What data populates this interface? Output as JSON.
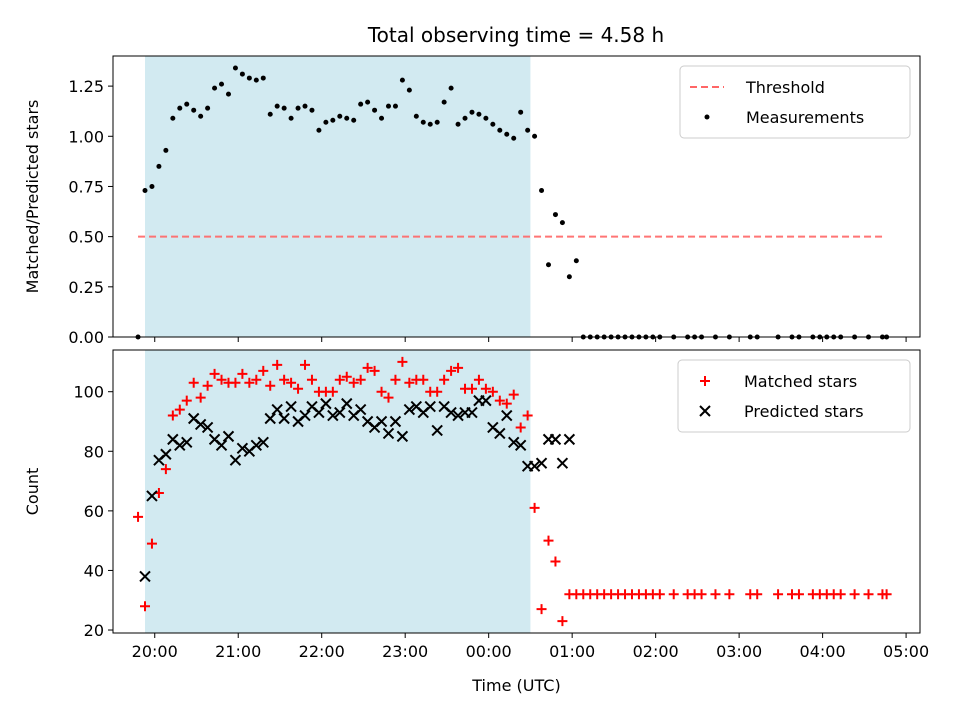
{
  "title": "Total observing time = 4.58 h",
  "chart_data": [
    {
      "type": "scatter",
      "ylabel": "Matched/Predicted stars",
      "xlabel": "",
      "xlim": [
        "19:30",
        "05:10"
      ],
      "ylim": [
        0,
        1.4
      ],
      "xticks": [
        "20:00",
        "21:00",
        "22:00",
        "23:00",
        "00:00",
        "01:00",
        "02:00",
        "03:00",
        "04:00",
        "05:00"
      ],
      "yticks": [
        "0.00",
        "0.25",
        "0.50",
        "0.75",
        "1.00",
        "1.25"
      ],
      "shaded_region": [
        "19:53",
        "00:30"
      ],
      "shaded_color": "#add8e6",
      "legend_position": "upper right",
      "threshold": {
        "name": "Threshold",
        "value": 0.5,
        "x_start": "19:48",
        "x_end": "04:45",
        "color": "#ff6666"
      },
      "series": [
        {
          "name": "Measurements",
          "color": "#000000",
          "x": [
            "19:48",
            "19:53",
            "19:58",
            "20:03",
            "20:08",
            "20:13",
            "20:18",
            "20:23",
            "20:28",
            "20:33",
            "20:38",
            "20:43",
            "20:48",
            "20:53",
            "20:58",
            "21:03",
            "21:08",
            "21:13",
            "21:18",
            "21:23",
            "21:28",
            "21:33",
            "21:38",
            "21:43",
            "21:48",
            "21:53",
            "21:58",
            "22:03",
            "22:08",
            "22:13",
            "22:18",
            "22:23",
            "22:28",
            "22:33",
            "22:38",
            "22:43",
            "22:48",
            "22:53",
            "22:58",
            "23:03",
            "23:08",
            "23:13",
            "23:18",
            "23:23",
            "23:28",
            "23:33",
            "23:38",
            "23:43",
            "23:48",
            "23:53",
            "23:58",
            "00:03",
            "00:08",
            "00:13",
            "00:18",
            "00:23",
            "00:28",
            "00:33",
            "00:38",
            "00:43",
            "00:48",
            "00:53",
            "00:58",
            "01:03",
            "01:08",
            "01:13",
            "01:18",
            "01:23",
            "01:28",
            "01:33",
            "01:38",
            "01:43",
            "01:48",
            "01:53",
            "01:58",
            "02:03",
            "02:13",
            "02:23",
            "02:28",
            "02:33",
            "02:43",
            "02:53",
            "03:08",
            "03:13",
            "03:28",
            "03:38",
            "03:43",
            "03:53",
            "03:58",
            "04:03",
            "04:08",
            "04:13",
            "04:23",
            "04:33",
            "04:43",
            "04:46"
          ],
          "y": [
            0.0,
            0.73,
            0.75,
            0.85,
            0.93,
            1.09,
            1.14,
            1.16,
            1.13,
            1.1,
            1.14,
            1.24,
            1.26,
            1.21,
            1.34,
            1.31,
            1.29,
            1.28,
            1.29,
            1.11,
            1.15,
            1.14,
            1.09,
            1.14,
            1.15,
            1.13,
            1.03,
            1.07,
            1.08,
            1.1,
            1.09,
            1.08,
            1.16,
            1.17,
            1.13,
            1.09,
            1.15,
            1.15,
            1.28,
            1.23,
            1.1,
            1.07,
            1.06,
            1.07,
            1.17,
            1.24,
            1.06,
            1.09,
            1.12,
            1.11,
            1.09,
            1.06,
            1.03,
            1.01,
            0.99,
            1.12,
            1.03,
            1.0,
            0.73,
            0.36,
            0.61,
            0.57,
            0.3,
            0.38,
            0,
            0,
            0,
            0,
            0,
            0,
            0,
            0,
            0,
            0,
            0,
            0,
            0,
            0,
            0,
            0,
            0,
            0,
            0,
            0,
            0,
            0,
            0,
            0,
            0,
            0,
            0,
            0,
            0,
            0,
            0,
            0
          ]
        }
      ]
    },
    {
      "type": "scatter",
      "ylabel": "Count",
      "xlabel": "Time (UTC)",
      "xlim": [
        "19:30",
        "05:10"
      ],
      "ylim": [
        19,
        114
      ],
      "xticks": [
        "20:00",
        "21:00",
        "22:00",
        "23:00",
        "00:00",
        "01:00",
        "02:00",
        "03:00",
        "04:00",
        "05:00"
      ],
      "yticks": [
        "20",
        "40",
        "60",
        "80",
        "100"
      ],
      "shaded_region": [
        "19:53",
        "00:30"
      ],
      "shaded_color": "#add8e6",
      "legend_position": "upper right",
      "series": [
        {
          "name": "Matched stars",
          "marker": "+",
          "color": "#ff0000",
          "x": [
            "19:48",
            "19:53",
            "19:58",
            "20:03",
            "20:08",
            "20:13",
            "20:18",
            "20:23",
            "20:28",
            "20:33",
            "20:38",
            "20:43",
            "20:48",
            "20:53",
            "20:58",
            "21:03",
            "21:08",
            "21:13",
            "21:18",
            "21:23",
            "21:28",
            "21:33",
            "21:38",
            "21:43",
            "21:48",
            "21:53",
            "21:58",
            "22:03",
            "22:08",
            "22:13",
            "22:18",
            "22:23",
            "22:28",
            "22:33",
            "22:38",
            "22:43",
            "22:48",
            "22:53",
            "22:58",
            "23:03",
            "23:08",
            "23:13",
            "23:18",
            "23:23",
            "23:28",
            "23:33",
            "23:38",
            "23:43",
            "23:48",
            "23:53",
            "23:58",
            "00:03",
            "00:08",
            "00:13",
            "00:18",
            "00:23",
            "00:28",
            "00:33",
            "00:38",
            "00:43",
            "00:48",
            "00:53",
            "00:58",
            "01:03",
            "01:08",
            "01:13",
            "01:18",
            "01:23",
            "01:28",
            "01:33",
            "01:38",
            "01:43",
            "01:48",
            "01:53",
            "01:58",
            "02:03",
            "02:13",
            "02:23",
            "02:28",
            "02:33",
            "02:43",
            "02:53",
            "03:08",
            "03:13",
            "03:28",
            "03:38",
            "03:43",
            "03:53",
            "03:58",
            "04:03",
            "04:08",
            "04:13",
            "04:23",
            "04:33",
            "04:43",
            "04:46"
          ],
          "y": [
            58,
            28,
            49,
            66,
            74,
            92,
            94,
            97,
            103,
            98,
            102,
            106,
            104,
            103,
            103,
            106,
            103,
            104,
            107,
            102,
            109,
            104,
            103,
            101,
            109,
            104,
            100,
            100,
            100,
            104,
            105,
            103,
            104,
            108,
            107,
            100,
            98,
            104,
            110,
            103,
            104,
            104,
            100,
            100,
            104,
            107,
            108,
            101,
            101,
            104,
            101,
            100,
            97,
            96,
            99,
            88,
            92,
            61,
            27,
            50,
            43,
            23,
            32,
            32,
            32,
            32,
            32,
            32,
            32,
            32,
            32,
            32,
            32,
            32,
            32,
            32,
            32,
            32,
            32,
            32,
            32,
            32,
            32,
            32,
            32,
            32,
            32,
            32,
            32,
            32,
            32,
            32,
            32,
            32,
            32,
            32
          ]
        },
        {
          "name": "Predicted stars",
          "marker": "x",
          "color": "#000000",
          "x": [
            "19:53",
            "19:58",
            "20:03",
            "20:08",
            "20:13",
            "20:18",
            "20:23",
            "20:28",
            "20:33",
            "20:38",
            "20:43",
            "20:48",
            "20:53",
            "20:58",
            "21:03",
            "21:08",
            "21:13",
            "21:18",
            "21:23",
            "21:28",
            "21:33",
            "21:38",
            "21:43",
            "21:48",
            "21:53",
            "21:58",
            "22:03",
            "22:08",
            "22:13",
            "22:18",
            "22:23",
            "22:28",
            "22:33",
            "22:38",
            "22:43",
            "22:48",
            "22:53",
            "22:58",
            "23:03",
            "23:08",
            "23:13",
            "23:18",
            "23:23",
            "23:28",
            "23:33",
            "23:38",
            "23:43",
            "23:48",
            "23:53",
            "23:58",
            "00:03",
            "00:08",
            "00:13",
            "00:18",
            "00:23",
            "00:28",
            "00:33",
            "00:38",
            "00:43",
            "00:48",
            "00:53",
            "00:58"
          ],
          "y": [
            38,
            65,
            77,
            79,
            84,
            82,
            83,
            91,
            89,
            88,
            84,
            82,
            85,
            77,
            81,
            80,
            82,
            83,
            91,
            94,
            91,
            95,
            90,
            92,
            95,
            93,
            96,
            92,
            93,
            96,
            92,
            94,
            90,
            88,
            90,
            86,
            90,
            85,
            94,
            95,
            93,
            95,
            87,
            95,
            93,
            92,
            93,
            93,
            97,
            97,
            88,
            86,
            92,
            83,
            82,
            75,
            75,
            76,
            84,
            84,
            76,
            84
          ]
        }
      ]
    }
  ]
}
